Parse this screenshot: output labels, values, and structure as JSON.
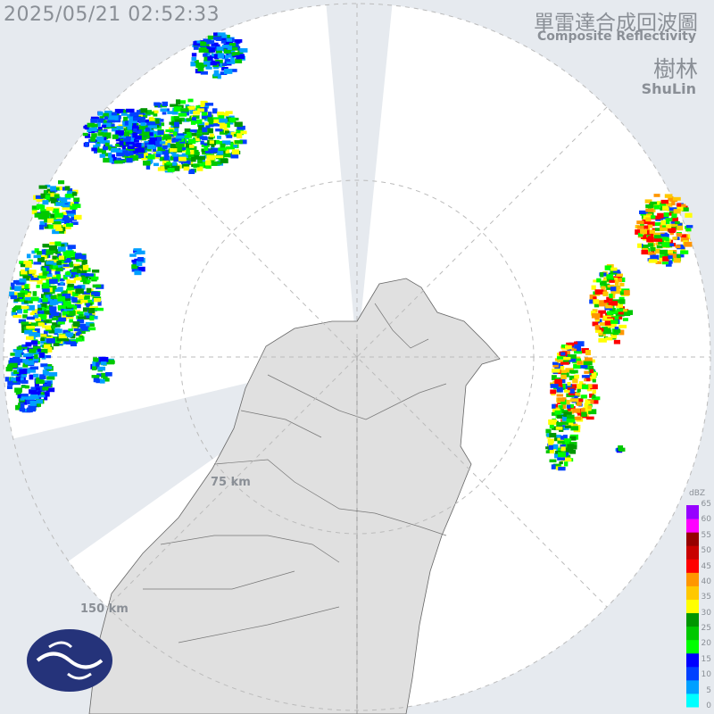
{
  "header": {
    "timestamp": "2025/05/21 02:52:33",
    "title_zh": "單雷達合成回波圖",
    "title_en": "Composite Reflectivity",
    "station_zh": "樹林",
    "station_en": "ShuLin"
  },
  "range_rings": [
    {
      "label": "75 km"
    },
    {
      "label": "150 km"
    }
  ],
  "legend": {
    "unit": "dBZ",
    "ticks": [
      "65",
      "60",
      "55",
      "50",
      "45",
      "40",
      "35",
      "30",
      "25",
      "20",
      "15",
      "10",
      "5",
      "0"
    ],
    "colors": [
      "#00ffff",
      "#00a0ff",
      "#0040ff",
      "#0000ff",
      "#00ff00",
      "#00c800",
      "#009600",
      "#ffff00",
      "#ffc800",
      "#ff9600",
      "#ff0000",
      "#c80000",
      "#960000",
      "#ff00ff",
      "#9600ff"
    ]
  },
  "colors": {
    "background": "#e6eaef",
    "radar_area": "#ffffff",
    "land": "#e2e2e2",
    "logo": "#25337a"
  },
  "logo": {
    "name": "cwa-logo-icon"
  }
}
